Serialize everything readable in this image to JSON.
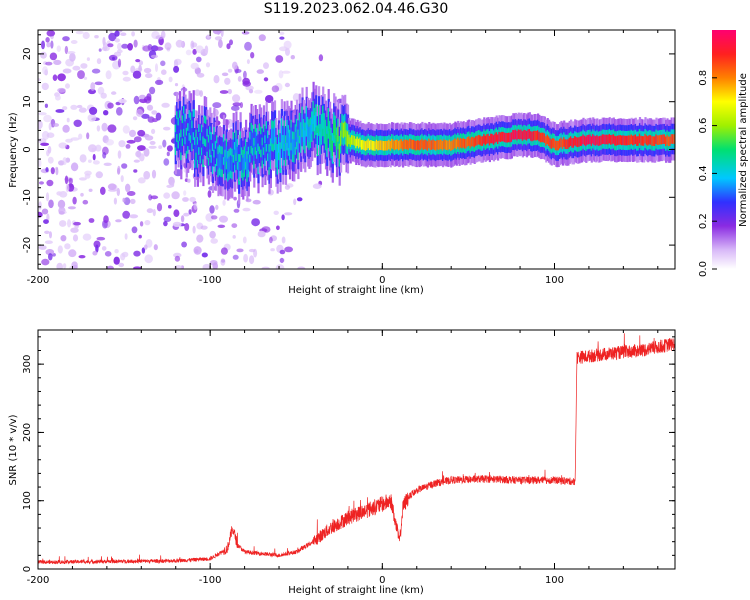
{
  "title": "S119.2023.062.04.46.G30",
  "colors": {
    "snr_line": "#ee2222",
    "spectrogram_scatter": "#8a2be2",
    "colormap": [
      "#ffffff",
      "#d8b8f8",
      "#8a2be2",
      "#3030ff",
      "#00c8ff",
      "#00e070",
      "#a0f000",
      "#ffff00",
      "#ff8000",
      "#ff2020",
      "#ff0070"
    ]
  },
  "chart_data": [
    {
      "type": "heatmap",
      "name": "spectrogram",
      "xlabel": "Height of straight line (km)",
      "ylabel": "Frequency (Hz)",
      "xlim": [
        -200,
        170
      ],
      "ylim": [
        -25,
        25
      ],
      "xticks": [
        -200,
        -100,
        0,
        100
      ],
      "yticks": [
        20,
        10,
        0,
        -10,
        -20
      ],
      "colorbar": {
        "label": "Normalized spectral amplitude",
        "range": [
          0,
          1
        ],
        "ticks": [
          0.0,
          0.2,
          0.4,
          0.6,
          0.8
        ]
      },
      "ridge": {
        "description_points_x": [
          -115,
          -100,
          -90,
          -80,
          -70,
          -60,
          -50,
          -40,
          -30,
          -20,
          -10,
          0,
          20,
          40,
          60,
          80,
          90,
          100,
          120,
          140,
          170
        ],
        "frequency_hz": [
          3,
          1,
          -2,
          -1,
          1,
          0,
          3,
          5,
          3,
          2,
          1,
          1,
          1,
          1,
          2,
          3,
          3,
          1,
          2,
          2,
          2
        ],
        "peak_amplitude": [
          0.3,
          0.3,
          0.35,
          0.35,
          0.3,
          0.4,
          0.35,
          0.4,
          0.5,
          0.6,
          0.7,
          0.75,
          0.85,
          0.8,
          0.9,
          0.95,
          0.9,
          0.85,
          0.95,
          0.9,
          0.85
        ]
      }
    },
    {
      "type": "line",
      "name": "snr",
      "xlabel": "Height of straight line (km)",
      "ylabel": "SNR (10 * v/v)",
      "xlim": [
        -200,
        170
      ],
      "ylim": [
        0,
        350
      ],
      "xticks": [
        -200,
        -100,
        0,
        100
      ],
      "yticks": [
        0,
        100,
        200,
        300
      ],
      "trend": {
        "x": [
          -200,
          -120,
          -100,
          -90,
          -87,
          -84,
          -80,
          -60,
          -50,
          -40,
          -30,
          -20,
          -10,
          0,
          5,
          10,
          12,
          15,
          20,
          30,
          40,
          60,
          80,
          100,
          112,
          113,
          115,
          130,
          150,
          170
        ],
        "y": [
          10,
          12,
          15,
          30,
          60,
          35,
          25,
          20,
          25,
          40,
          60,
          75,
          85,
          95,
          100,
          40,
          90,
          105,
          115,
          125,
          130,
          132,
          130,
          130,
          128,
          310,
          310,
          315,
          320,
          330
        ]
      },
      "noise_amplitude": 14
    }
  ]
}
